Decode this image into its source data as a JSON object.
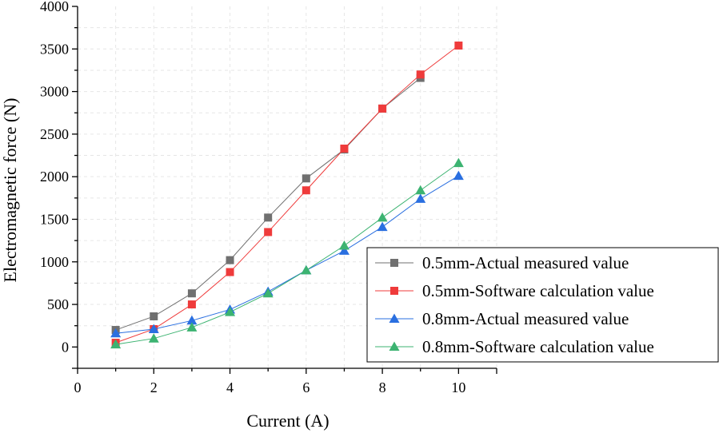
{
  "chart_data": {
    "type": "line",
    "xlabel": "Current (A)",
    "ylabel": "Electromagnetic force (N)",
    "xlim": [
      0,
      11
    ],
    "ylim": [
      -250,
      4000
    ],
    "xticks": [
      0,
      2,
      4,
      6,
      8,
      10
    ],
    "xtick_labels": [
      "0",
      "2",
      "4",
      "6",
      "8",
      "10"
    ],
    "yticks": [
      0,
      500,
      1000,
      1500,
      2000,
      2500,
      3000,
      3500,
      4000
    ],
    "ytick_labels": [
      "0",
      "500",
      "1000",
      "1500",
      "2000",
      "2500",
      "3000",
      "3500",
      "4000"
    ],
    "grid": true,
    "legend_position": "bottom-right",
    "series": [
      {
        "name": "0.5mm-Actual measured value",
        "marker": "square",
        "color": "#707070",
        "x": [
          1,
          2,
          3,
          4,
          5,
          6,
          7,
          8,
          9
        ],
        "y": [
          200,
          360,
          630,
          1020,
          1520,
          1980,
          2320,
          2800,
          3160
        ]
      },
      {
        "name": "0.5mm-Software calculation value",
        "marker": "square",
        "color": "#ef3b3b",
        "x": [
          1,
          2,
          3,
          4,
          5,
          6,
          7,
          8,
          9,
          10
        ],
        "y": [
          50,
          210,
          500,
          880,
          1350,
          1840,
          2330,
          2800,
          3200,
          3540
        ]
      },
      {
        "name": "0.8mm-Actual measured value",
        "marker": "triangle",
        "color": "#2a6fe0",
        "x": [
          1,
          2,
          3,
          4,
          5,
          6,
          7,
          8,
          9,
          10
        ],
        "y": [
          160,
          210,
          310,
          440,
          650,
          900,
          1130,
          1410,
          1740,
          2010
        ]
      },
      {
        "name": "0.8mm-Software calculation value",
        "marker": "triangle",
        "color": "#3cb371",
        "x": [
          1,
          2,
          3,
          4,
          5,
          6,
          7,
          8,
          9,
          10
        ],
        "y": [
          30,
          100,
          230,
          410,
          630,
          900,
          1190,
          1520,
          1840,
          2160
        ]
      }
    ]
  }
}
